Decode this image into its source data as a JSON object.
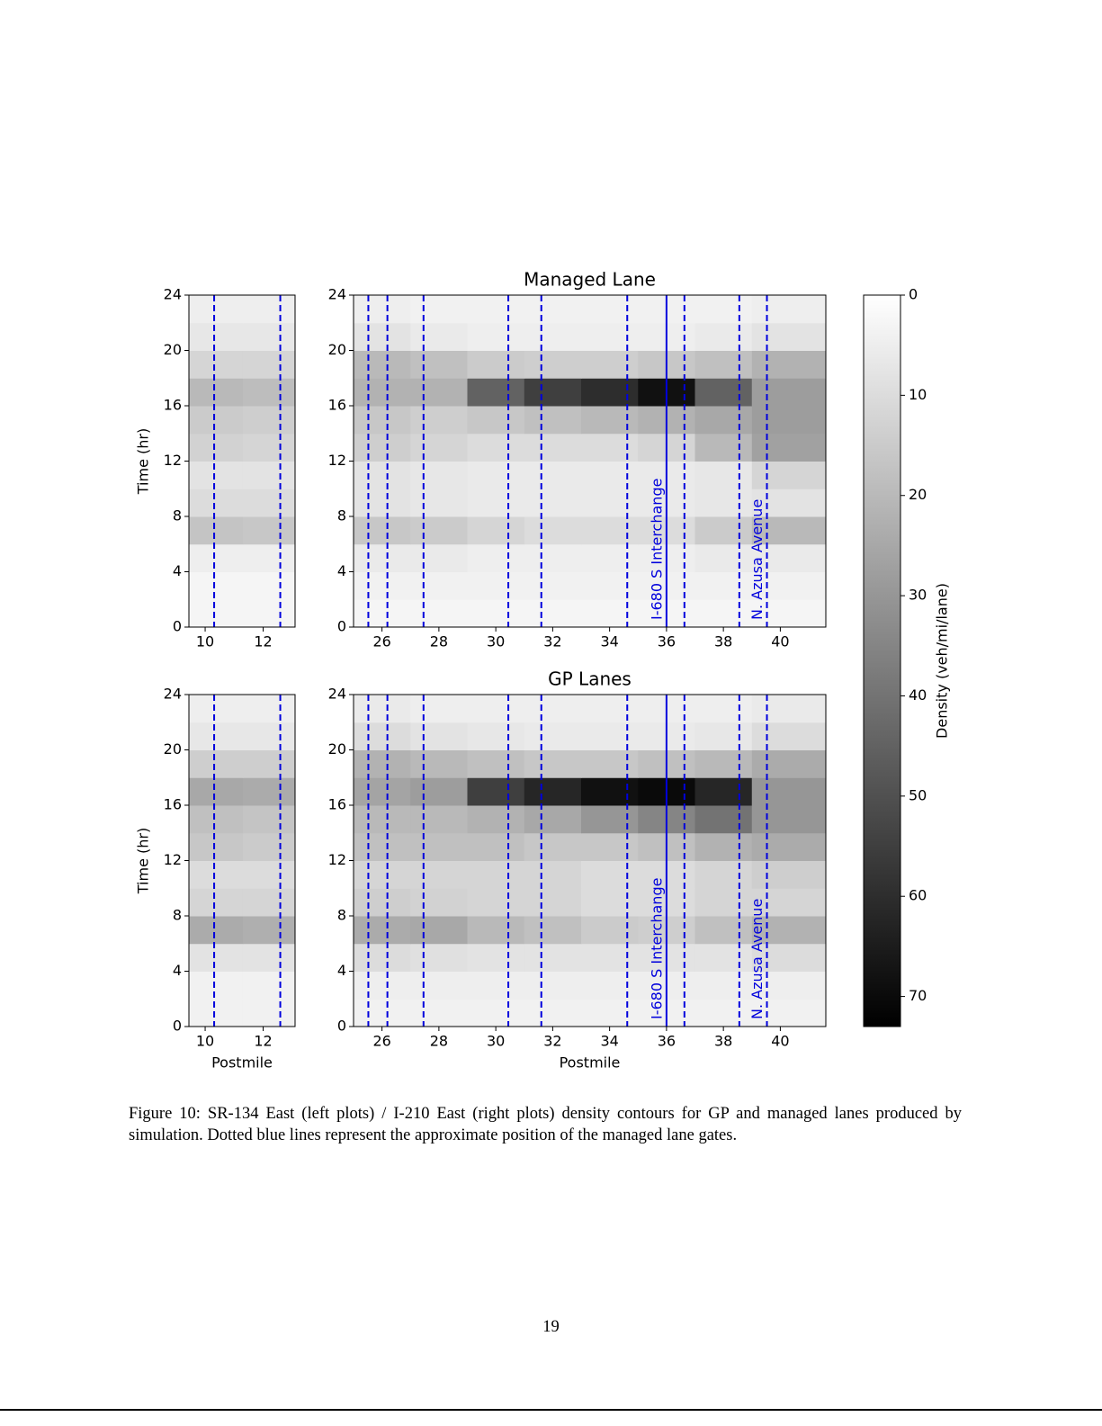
{
  "chart_data": [
    {
      "type": "heatmap",
      "ylabel": "Time (hr)",
      "x_edges": [
        9.44,
        11.3,
        13.1
      ],
      "y_edges": [
        0,
        2,
        4,
        6,
        8,
        10,
        12,
        14,
        16,
        18,
        20,
        22,
        24
      ],
      "values": [
        [
          3,
          3
        ],
        [
          3,
          3
        ],
        [
          5,
          5
        ],
        [
          17,
          16
        ],
        [
          10,
          10
        ],
        [
          8,
          8
        ],
        [
          13,
          12
        ],
        [
          15,
          14
        ],
        [
          20,
          19
        ],
        [
          12,
          12
        ],
        [
          7,
          7
        ],
        [
          5,
          5
        ]
      ],
      "xlim": [
        9.44,
        13.1
      ],
      "ylim": [
        0,
        24
      ],
      "xticks": [
        10,
        12
      ],
      "yticks": [
        0,
        4,
        8,
        12,
        16,
        20,
        24
      ],
      "gates": [
        10.31,
        12.59
      ],
      "gate_color": "#0000dd"
    },
    {
      "type": "heatmap",
      "title": "Managed Lane",
      "x_edges": [
        25.0,
        27,
        29,
        31,
        33,
        35,
        37,
        39,
        41.6
      ],
      "y_edges": [
        0,
        2,
        4,
        6,
        8,
        10,
        12,
        14,
        16,
        18,
        20,
        22,
        24
      ],
      "values": [
        [
          3,
          3,
          3,
          3,
          3,
          3,
          3,
          3
        ],
        [
          4,
          4,
          4,
          4,
          4,
          4,
          4,
          4
        ],
        [
          6,
          6,
          5,
          5,
          5,
          5,
          6,
          6
        ],
        [
          16,
          15,
          12,
          10,
          10,
          10,
          15,
          20
        ],
        [
          8,
          7,
          6,
          6,
          6,
          6,
          7,
          8
        ],
        [
          8,
          7,
          6,
          6,
          6,
          6,
          7,
          12
        ],
        [
          14,
          12,
          10,
          10,
          10,
          12,
          20,
          27
        ],
        [
          16,
          14,
          16,
          18,
          20,
          22,
          25,
          28
        ],
        [
          22,
          22,
          45,
          55,
          60,
          68,
          45,
          28
        ],
        [
          20,
          18,
          15,
          14,
          14,
          16,
          18,
          22
        ],
        [
          8,
          6,
          5,
          5,
          5,
          5,
          6,
          8
        ],
        [
          5,
          4,
          4,
          4,
          4,
          4,
          4,
          5
        ]
      ],
      "xlim": [
        25.0,
        41.6
      ],
      "ylim": [
        0,
        24
      ],
      "xticks": [
        26,
        28,
        30,
        32,
        34,
        36,
        38,
        40
      ],
      "yticks": [
        0,
        4,
        8,
        12,
        16,
        20,
        24
      ],
      "gates": [
        25.52,
        26.19,
        27.46,
        30.44,
        31.6,
        34.62,
        36.63,
        38.56,
        39.53
      ],
      "gate_color": "#0000dd",
      "annotations": [
        {
          "text": "I-680 S Interchange",
          "x": 36,
          "line": true
        },
        {
          "text": "N. Azusa Avenue",
          "x": 39.53,
          "line": false
        }
      ]
    },
    {
      "type": "heatmap",
      "xlabel": "Postmile",
      "ylabel": "Time (hr)",
      "x_edges": [
        9.44,
        11.3,
        13.1
      ],
      "y_edges": [
        0,
        2,
        4,
        6,
        8,
        10,
        12,
        14,
        16,
        18,
        20,
        22,
        24
      ],
      "values": [
        [
          4,
          4
        ],
        [
          4,
          4
        ],
        [
          8,
          8
        ],
        [
          24,
          23
        ],
        [
          12,
          12
        ],
        [
          10,
          10
        ],
        [
          16,
          15
        ],
        [
          18,
          17
        ],
        [
          25,
          24
        ],
        [
          14,
          14
        ],
        [
          7,
          7
        ],
        [
          5,
          5
        ]
      ],
      "xlim": [
        9.44,
        13.1
      ],
      "ylim": [
        0,
        24
      ],
      "xticks": [
        10,
        12
      ],
      "yticks": [
        0,
        4,
        8,
        12,
        16,
        20,
        24
      ],
      "gates": [
        10.31,
        12.59
      ],
      "gate_color": "#0000dd"
    },
    {
      "type": "heatmap",
      "title": "GP Lanes",
      "xlabel": "Postmile",
      "x_edges": [
        25.0,
        27,
        29,
        31,
        33,
        35,
        37,
        39,
        41.6
      ],
      "y_edges": [
        0,
        2,
        4,
        6,
        8,
        10,
        12,
        14,
        16,
        18,
        20,
        22,
        24
      ],
      "values": [
        [
          4,
          4,
          4,
          4,
          4,
          4,
          4,
          4
        ],
        [
          5,
          5,
          5,
          5,
          5,
          5,
          5,
          5
        ],
        [
          10,
          9,
          8,
          8,
          8,
          8,
          8,
          10
        ],
        [
          24,
          25,
          20,
          18,
          15,
          14,
          18,
          22
        ],
        [
          14,
          13,
          12,
          12,
          10,
          10,
          12,
          12
        ],
        [
          12,
          12,
          12,
          12,
          10,
          10,
          12,
          14
        ],
        [
          18,
          18,
          18,
          16,
          16,
          18,
          22,
          24
        ],
        [
          20,
          20,
          22,
          25,
          30,
          35,
          40,
          30
        ],
        [
          26,
          28,
          55,
          62,
          68,
          70,
          62,
          30
        ],
        [
          22,
          20,
          18,
          16,
          16,
          18,
          20,
          24
        ],
        [
          10,
          8,
          7,
          6,
          6,
          6,
          7,
          10
        ],
        [
          6,
          5,
          5,
          5,
          5,
          5,
          5,
          6
        ]
      ],
      "xlim": [
        25.0,
        41.6
      ],
      "ylim": [
        0,
        24
      ],
      "xticks": [
        26,
        28,
        30,
        32,
        34,
        36,
        38,
        40
      ],
      "yticks": [
        0,
        4,
        8,
        12,
        16,
        20,
        24
      ],
      "gates": [
        25.52,
        26.19,
        27.46,
        30.44,
        31.6,
        34.62,
        36.63,
        38.56,
        39.53
      ],
      "gate_color": "#0000dd",
      "annotations": [
        {
          "text": "I-680 S Interchange",
          "x": 36,
          "line": true
        },
        {
          "text": "N. Azusa Avenue",
          "x": 39.53,
          "line": false
        }
      ]
    }
  ],
  "colorbar": {
    "label": "Density (veh/mi/lane)",
    "lim": [
      0,
      73
    ],
    "ticks": [
      0,
      10,
      20,
      30,
      40,
      50,
      60,
      70
    ],
    "colors": [
      "#ffffff",
      "#000000"
    ]
  },
  "caption": "Figure 10: SR-134 East (left plots) / I-210 East (right plots) density contours for GP and managed lanes produced by simulation. Dotted blue lines represent the approximate position of the managed lane gates.",
  "page_number": "19"
}
